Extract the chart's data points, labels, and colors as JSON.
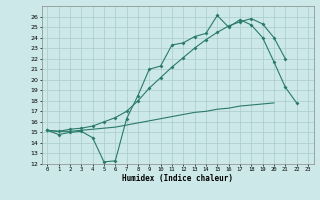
{
  "xlabel": "Humidex (Indice chaleur)",
  "bg_color": "#cce8e8",
  "grid_color": "#aacccc",
  "line_color": "#2a7a6a",
  "xlim": [
    -0.5,
    23.5
  ],
  "ylim": [
    12,
    27
  ],
  "xticks": [
    0,
    1,
    2,
    3,
    4,
    5,
    6,
    7,
    8,
    9,
    10,
    11,
    12,
    13,
    14,
    15,
    16,
    17,
    18,
    19,
    20,
    21,
    22,
    23
  ],
  "yticks": [
    12,
    13,
    14,
    15,
    16,
    17,
    18,
    19,
    20,
    21,
    22,
    23,
    24,
    25,
    26
  ],
  "line1_y": [
    15.2,
    14.8,
    15.0,
    15.1,
    14.5,
    12.2,
    12.3,
    16.3,
    18.5,
    21.0,
    21.3,
    23.3,
    23.5,
    24.1,
    24.4,
    26.1,
    25.0,
    25.7,
    25.2,
    24.0,
    21.7,
    19.3,
    17.8,
    null
  ],
  "line2_y": [
    15.2,
    15.1,
    15.1,
    15.2,
    15.3,
    15.4,
    15.5,
    15.7,
    15.9,
    16.1,
    16.3,
    16.5,
    16.7,
    16.9,
    17.0,
    17.2,
    17.3,
    17.5,
    17.6,
    17.7,
    17.8,
    null,
    null,
    null
  ],
  "line3_y": [
    15.2,
    15.1,
    15.3,
    15.4,
    15.6,
    16.0,
    16.4,
    17.0,
    18.0,
    19.2,
    20.2,
    21.2,
    22.1,
    23.0,
    23.8,
    24.5,
    25.1,
    25.5,
    25.8,
    25.3,
    24.0,
    22.0,
    null,
    null
  ]
}
